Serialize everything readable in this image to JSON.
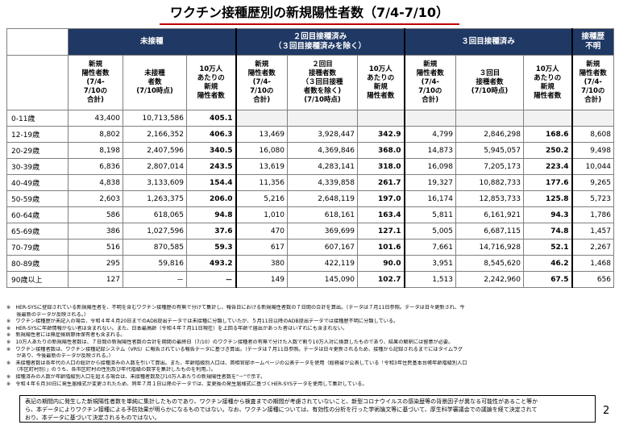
{
  "title": "ワクチン接種歴別の新規陽性者数（7/4-7/10）",
  "groups": {
    "unvaccinated": "未接種",
    "two_dose_line1": "２回目接種済み",
    "two_dose_line2": "（３回目接種済みを除く）",
    "three_dose": "３回目接種済み",
    "unknown_line1": "接種歴",
    "unknown_line2": "不明"
  },
  "subheaders": {
    "new_cases": [
      "新規",
      "陽性者数",
      "(7/4-",
      "7/10の",
      "合計)"
    ],
    "unvax_count": [
      "未接種",
      "者数",
      "(7/10時点)"
    ],
    "per100k": [
      "10万人",
      "あたりの",
      "新規",
      "陽性者数"
    ],
    "two_count": [
      "２回目",
      "接種者数",
      "（３回目接種",
      "者数を除く)",
      "(7/10時点)"
    ],
    "three_count": [
      "３回目",
      "接種者数",
      "(7/10時点)"
    ]
  },
  "rows": [
    {
      "age": "0-11歳",
      "u_new": "43,400",
      "u_pop": "10,713,586",
      "u_rate": "405.1",
      "t_new": "",
      "t_pop": "",
      "t_rate": "",
      "r_new": "",
      "r_pop": "",
      "r_rate": "",
      "unk": ""
    },
    {
      "age": "12-19歳",
      "u_new": "8,802",
      "u_pop": "2,166,352",
      "u_rate": "406.3",
      "t_new": "13,469",
      "t_pop": "3,928,447",
      "t_rate": "342.9",
      "r_new": "4,799",
      "r_pop": "2,846,298",
      "r_rate": "168.6",
      "unk": "8,608"
    },
    {
      "age": "20-29歳",
      "u_new": "8,198",
      "u_pop": "2,407,596",
      "u_rate": "340.5",
      "t_new": "16,080",
      "t_pop": "4,369,846",
      "t_rate": "368.0",
      "r_new": "14,873",
      "r_pop": "5,945,057",
      "r_rate": "250.2",
      "unk": "9,498"
    },
    {
      "age": "30-39歳",
      "u_new": "6,836",
      "u_pop": "2,807,014",
      "u_rate": "243.5",
      "t_new": "13,619",
      "t_pop": "4,283,141",
      "t_rate": "318.0",
      "r_new": "16,098",
      "r_pop": "7,205,173",
      "r_rate": "223.4",
      "unk": "10,044"
    },
    {
      "age": "40-49歳",
      "u_new": "4,838",
      "u_pop": "3,133,609",
      "u_rate": "154.4",
      "t_new": "11,356",
      "t_pop": "4,339,858",
      "t_rate": "261.7",
      "r_new": "19,327",
      "r_pop": "10,882,733",
      "r_rate": "177.6",
      "unk": "9,265"
    },
    {
      "age": "50-59歳",
      "u_new": "2,603",
      "u_pop": "1,263,375",
      "u_rate": "206.0",
      "t_new": "5,216",
      "t_pop": "2,648,119",
      "t_rate": "197.0",
      "r_new": "16,174",
      "r_pop": "12,853,733",
      "r_rate": "125.8",
      "unk": "5,723"
    },
    {
      "age": "60-64歳",
      "u_new": "586",
      "u_pop": "618,065",
      "u_rate": "94.8",
      "t_new": "1,010",
      "t_pop": "618,161",
      "t_rate": "163.4",
      "r_new": "5,811",
      "r_pop": "6,161,921",
      "r_rate": "94.3",
      "unk": "1,786"
    },
    {
      "age": "65-69歳",
      "u_new": "386",
      "u_pop": "1,027,596",
      "u_rate": "37.6",
      "t_new": "470",
      "t_pop": "369,699",
      "t_rate": "127.1",
      "r_new": "5,005",
      "r_pop": "6,687,115",
      "r_rate": "74.8",
      "unk": "1,457"
    },
    {
      "age": "70-79歳",
      "u_new": "516",
      "u_pop": "870,585",
      "u_rate": "59.3",
      "t_new": "617",
      "t_pop": "607,167",
      "t_rate": "101.6",
      "r_new": "7,661",
      "r_pop": "14,716,928",
      "r_rate": "52.1",
      "unk": "2,267"
    },
    {
      "age": "80-89歳",
      "u_new": "295",
      "u_pop": "59,816",
      "u_rate": "493.2",
      "t_new": "380",
      "t_pop": "422,119",
      "t_rate": "90.0",
      "r_new": "3,951",
      "r_pop": "8,545,620",
      "r_rate": "46.2",
      "unk": "1,468"
    },
    {
      "age": "90歳以上",
      "u_new": "127",
      "u_pop": "－",
      "u_rate": "－",
      "t_new": "149",
      "t_pop": "145,090",
      "t_rate": "102.7",
      "r_new": "1,513",
      "r_pop": "2,242,960",
      "r_rate": "67.5",
      "unk": "656"
    }
  ],
  "notes": [
    "※　HER-SYSに登録されている新規陽性者を、不明を含むワクチン接種歴の有無で分けて集計し、報告日における新規陽性者数の７日間の合計を算出。（データは７月11日参照。データは日々更新され、今",
    "　　後最新のデータが反映される。）",
    "※　ワクチン接種歴が未記入の場合、令和４年４月20日までのADB提出データでは未接種に分類していたが、５月11日以降のADB提出データでは接種歴不明に分類している。",
    "※　HER-SYSに年齢情報がない者は含まれない。また、日本最高齢（令和４年７月11日現在）を上回る年齢で届出があった者はいずれにも含まれない。",
    "※　新規陽性者には無症候病原体保有者も含まれる。",
    "※　10万人あたりの新規陽性者数は、７日間の新規陽性者数の合計を期間の最終日（7/10）のワクチン接種者の有無で分けた人数で割り10万人対に換算したものであり、結果の解釈には留意が必要。",
    "※　ワクチン接種者数は、ワクチン接種記録システム（VRS）に報告されている報告データに基づき算出。（データは７月11日参照。データは日々更新されるため、接種から記録されるまでにはタイムラグ",
    "　　があり、今後最新のデータが反映される。）",
    "※　未接種者数は各年代の人口の総計から接種済みの人数を引いて算出。また、年齢階級別人口は、首相官邸ホームページの公表データを使用（総務省が公表している「令和3年住民基本台帳年齢階級別人口",
    "　　（市区町村別）」のうち、各市区町村の性別及び年代階級の数字を集計したものを利用。）。",
    "※　接種済みの人数が年齢階級別人口を超える場合は、未接種者数及び10万人あたりの新規陽性者数を\"－\"で示す。",
    "※　令和４年６月30日に発生届様式が変更されたため、同年７月１日以降のデータでは、変更後の発生届様式に基づくHER-SYSデータを使用して集計している。"
  ],
  "box_lines": [
    "表記の期間内に発生した新規陽性者数を単純に集計したものであり、ワクチン接種から検査までの期間が考慮されていないこと、新型コロナウイルスの感染歴等の背景因子が異なる可能性があること等か",
    "ら、本データによりワクチン接種による予防効果が明らかになるものではない。なお、ワクチン接種については、有効性の分析を行った学術論文等に基づいて、厚生科学審議会での議論を経て決定されて",
    "おり、本データに基づいて決定されるものではない。"
  ],
  "page_number": "2"
}
